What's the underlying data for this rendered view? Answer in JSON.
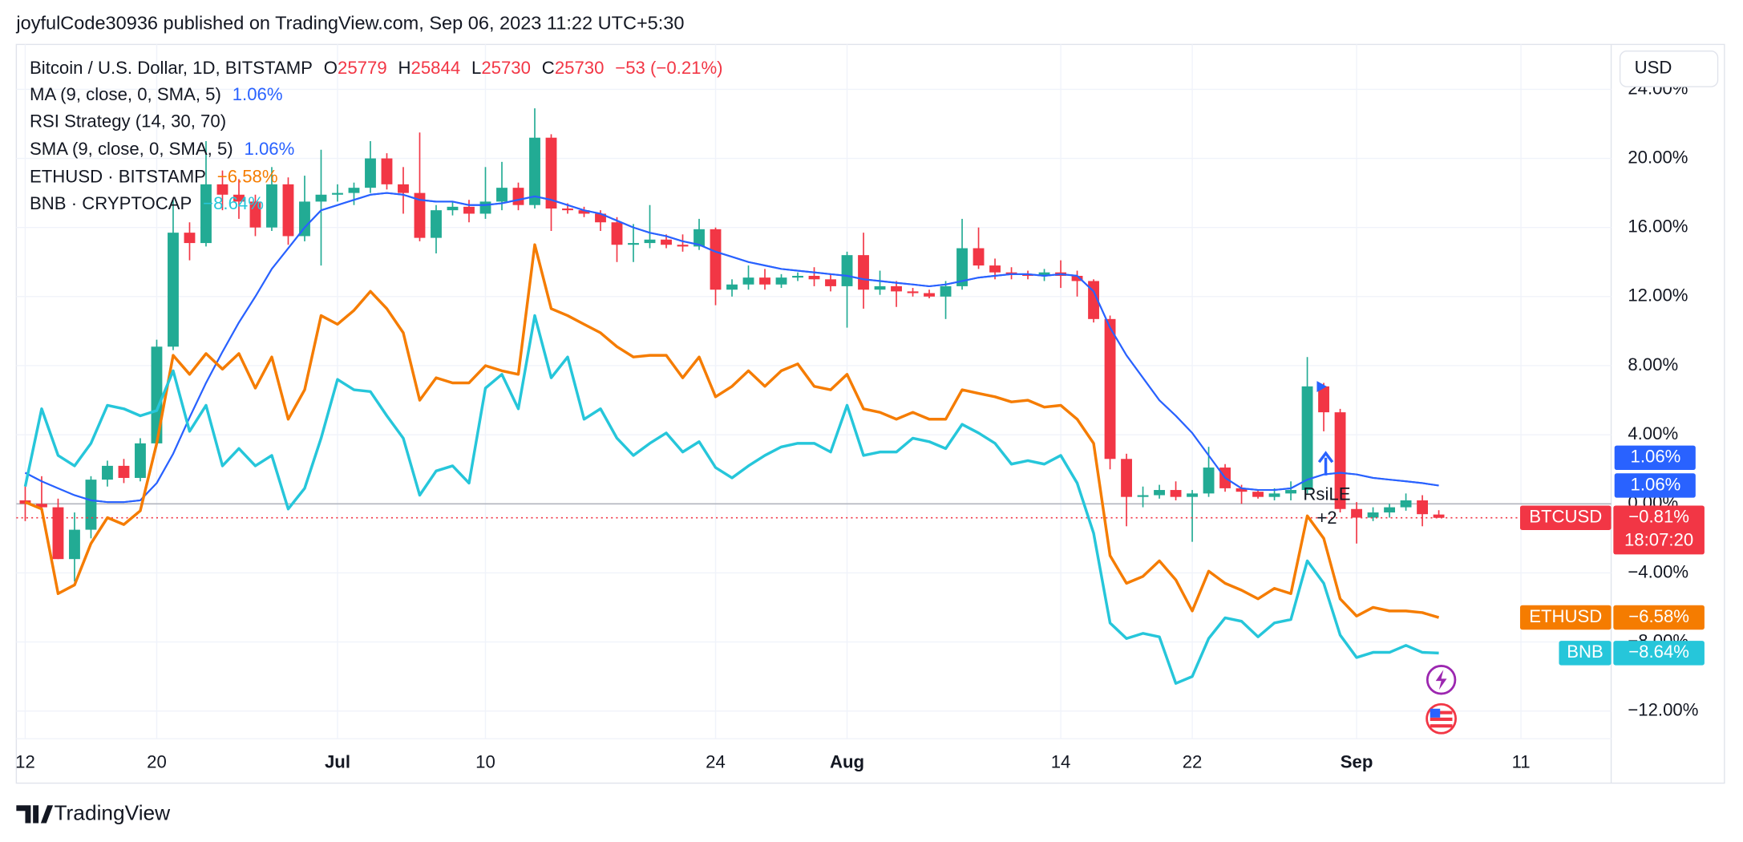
{
  "header": "joyfulCode30936 published on TradingView.com, Sep 06, 2023 11:22 UTC+5:30",
  "footer": "TradingView",
  "chart_data": {
    "type": "candlestick",
    "currency": "USD",
    "grid": true,
    "up_color": "#22ab94",
    "down_color": "#f23645",
    "ylim": [
      -13.6,
      26.6
    ],
    "yticks": [
      {
        "value": 24,
        "label": "24.00%"
      },
      {
        "value": 20,
        "label": "20.00%"
      },
      {
        "value": 16,
        "label": "16.00%"
      },
      {
        "value": 12,
        "label": "12.00%"
      },
      {
        "value": 8,
        "label": "8.00%"
      },
      {
        "value": 4,
        "label": "4.00%"
      },
      {
        "value": 0,
        "label": "0.00%"
      },
      {
        "value": -4,
        "label": "−4.00%"
      },
      {
        "value": -8,
        "label": "−8.00%"
      },
      {
        "value": -12,
        "label": "−12.00%"
      }
    ],
    "x": [
      "Jun 12",
      "Jun 13",
      "Jun 14",
      "Jun 15",
      "Jun 16",
      "Jun 17",
      "Jun 18",
      "Jun 19",
      "Jun 20",
      "Jun 21",
      "Jun 22",
      "Jun 23",
      "Jun 24",
      "Jun 25",
      "Jun 26",
      "Jun 27",
      "Jun 28",
      "Jun 29",
      "Jun 30",
      "Jul 1",
      "Jul 2",
      "Jul 3",
      "Jul 4",
      "Jul 5",
      "Jul 6",
      "Jul 7",
      "Jul 8",
      "Jul 9",
      "Jul 10",
      "Jul 11",
      "Jul 12",
      "Jul 13",
      "Jul 14",
      "Jul 15",
      "Jul 16",
      "Jul 17",
      "Jul 18",
      "Jul 19",
      "Jul 20",
      "Jul 21",
      "Jul 22",
      "Jul 23",
      "Jul 24",
      "Jul 25",
      "Jul 26",
      "Jul 27",
      "Jul 28",
      "Jul 29",
      "Jul 30",
      "Jul 31",
      "Aug 1",
      "Aug 2",
      "Aug 3",
      "Aug 4",
      "Aug 5",
      "Aug 6",
      "Aug 7",
      "Aug 8",
      "Aug 9",
      "Aug 10",
      "Aug 11",
      "Aug 12",
      "Aug 13",
      "Aug 14",
      "Aug 15",
      "Aug 16",
      "Aug 17",
      "Aug 18",
      "Aug 19",
      "Aug 20",
      "Aug 21",
      "Aug 22",
      "Aug 23",
      "Aug 24",
      "Aug 25",
      "Aug 26",
      "Aug 27",
      "Aug 28",
      "Aug 29",
      "Aug 30",
      "Aug 31",
      "Sep 1",
      "Sep 2",
      "Sep 3",
      "Sep 4",
      "Sep 5",
      "Sep 6",
      "Sep 7",
      "Sep 8",
      "Sep 9",
      "Sep 10",
      "Sep 11"
    ],
    "xticks": [
      {
        "value": "Jun 12",
        "label": "12"
      },
      {
        "value": "Jun 20",
        "label": "20"
      },
      {
        "value": "Jul 1",
        "label": "Jul"
      },
      {
        "value": "Jul 10",
        "label": "10"
      },
      {
        "value": "Jul 24",
        "label": "24"
      },
      {
        "value": "Aug 1",
        "label": "Aug"
      },
      {
        "value": "Aug 14",
        "label": "14"
      },
      {
        "value": "Aug 22",
        "label": "22"
      },
      {
        "value": "Sep 1",
        "label": "Sep"
      },
      {
        "value": "Sep 11",
        "label": "11"
      }
    ],
    "ohlc": {
      "symbol": "Bitcoin / U.S. Dollar, 1D, BITSTAMP",
      "short_name": "BTCUSD",
      "fields": [
        {
          "key": "O",
          "value": 25779
        },
        {
          "key": "H",
          "value": 25844
        },
        {
          "key": "L",
          "value": 25730
        },
        {
          "key": "C",
          "value": 25730
        }
      ],
      "change": -53,
      "change_pct": -0.21,
      "change_label": "−53 (−0.21%)",
      "last_label": "−0.81%",
      "countdown": "18:07:20",
      "open": [
        0.2,
        0.0,
        -0.2,
        -3.2,
        -1.5,
        1.4,
        2.2,
        1.5,
        3.5,
        9.1,
        15.7,
        15.1,
        18.5,
        17.9,
        17.5,
        16.0,
        18.5,
        15.5,
        17.5,
        17.9,
        18.0,
        18.3,
        20.0,
        18.5,
        18.0,
        15.4,
        17.0,
        17.2,
        16.8,
        17.5,
        18.3,
        17.3,
        21.2,
        17.1,
        17.0,
        16.8,
        16.3,
        15.0,
        15.1,
        15.3,
        15.0,
        14.9,
        15.9,
        12.4,
        12.7,
        13.1,
        12.7,
        13.1,
        13.2,
        13.0,
        12.6,
        14.4,
        12.4,
        12.6,
        12.3,
        12.2,
        12.0,
        12.6,
        14.8,
        13.8,
        13.4,
        13.3,
        13.2,
        13.4,
        13.2,
        12.9,
        10.7,
        2.6,
        0.4,
        0.5,
        0.8,
        0.4,
        0.6,
        2.1,
        0.9,
        0.7,
        0.4,
        0.6,
        0.8,
        6.8,
        5.3,
        -0.3,
        -0.8,
        -0.5,
        -0.2,
        0.2,
        -0.62,
        null,
        null,
        null,
        null,
        null
      ],
      "high": [
        1.0,
        1.6,
        0.3,
        -0.5,
        1.6,
        2.5,
        2.6,
        3.8,
        9.5,
        17.6,
        16.3,
        21.0,
        19.3,
        18.8,
        17.9,
        19.5,
        18.9,
        19.0,
        20.5,
        18.5,
        18.6,
        21.0,
        20.3,
        19.5,
        21.5,
        17.3,
        17.5,
        17.6,
        19.5,
        19.8,
        18.6,
        22.9,
        21.4,
        17.4,
        17.2,
        17.0,
        16.6,
        16.2,
        17.3,
        15.6,
        15.6,
        16.5,
        16.0,
        13.0,
        13.8,
        13.6,
        13.3,
        13.4,
        13.7,
        13.3,
        14.6,
        15.7,
        13.5,
        12.9,
        12.5,
        12.4,
        12.9,
        16.5,
        16.0,
        14.2,
        13.7,
        13.5,
        13.6,
        14.1,
        13.5,
        13.0,
        10.9,
        2.9,
        1.0,
        1.1,
        1.3,
        0.8,
        3.3,
        2.3,
        1.1,
        0.8,
        0.9,
        1.3,
        8.5,
        7.0,
        5.5,
        0.1,
        -0.2,
        0.0,
        0.6,
        0.5,
        -0.37,
        null,
        null,
        null,
        null,
        null
      ],
      "low": [
        -1.0,
        -0.5,
        -3.2,
        -4.5,
        -2.0,
        1.0,
        1.2,
        1.3,
        3.3,
        8.9,
        14.1,
        14.9,
        17.0,
        16.5,
        15.5,
        15.8,
        15.0,
        15.2,
        13.8,
        17.5,
        17.3,
        18.0,
        18.2,
        16.8,
        15.2,
        14.5,
        16.7,
        16.3,
        16.5,
        17.0,
        17.0,
        17.1,
        15.8,
        16.8,
        16.6,
        15.8,
        14.0,
        14.0,
        14.8,
        14.8,
        14.6,
        14.7,
        11.5,
        12.0,
        12.4,
        12.4,
        12.5,
        12.9,
        12.6,
        12.3,
        10.2,
        11.3,
        12.1,
        11.4,
        12.0,
        11.9,
        10.7,
        12.4,
        13.6,
        13.0,
        13.0,
        13.0,
        12.9,
        12.5,
        12.0,
        10.5,
        2.0,
        -1.3,
        -0.2,
        0.3,
        0.2,
        -2.2,
        0.4,
        0.7,
        0.0,
        0.3,
        0.2,
        0.2,
        0.6,
        4.2,
        -0.5,
        -2.3,
        -1.0,
        -0.8,
        -0.4,
        -1.3,
        -0.81,
        null,
        null,
        null,
        null,
        null
      ],
      "close": [
        0.0,
        -0.2,
        -3.2,
        -1.5,
        1.4,
        2.2,
        1.5,
        3.5,
        9.1,
        15.7,
        15.1,
        18.5,
        17.9,
        17.5,
        16.0,
        18.5,
        15.5,
        17.5,
        17.9,
        18.0,
        18.3,
        20.0,
        18.5,
        18.0,
        15.4,
        17.0,
        17.2,
        16.8,
        17.5,
        18.3,
        17.3,
        21.2,
        17.1,
        17.0,
        16.8,
        16.3,
        15.0,
        15.1,
        15.3,
        15.0,
        14.9,
        15.9,
        12.4,
        12.7,
        13.1,
        12.7,
        13.1,
        13.2,
        13.0,
        12.6,
        14.4,
        12.4,
        12.6,
        12.3,
        12.2,
        12.0,
        12.6,
        14.8,
        13.8,
        13.4,
        13.3,
        13.2,
        13.4,
        13.2,
        12.9,
        10.7,
        2.6,
        0.4,
        0.5,
        0.8,
        0.4,
        0.6,
        2.1,
        0.9,
        0.7,
        0.4,
        0.6,
        0.8,
        6.8,
        5.3,
        -0.3,
        -0.8,
        -0.5,
        -0.2,
        0.2,
        -0.6,
        -0.81,
        null,
        null,
        null,
        null,
        null
      ]
    },
    "indicators": [
      {
        "name": "RSI Strategy (14, 30, 70)"
      }
    ],
    "annotations": [
      {
        "text": "RsiLE"
      },
      {
        "text": "+2"
      }
    ],
    "series": [
      {
        "name": "MA (9, close, 0, SMA, 5)",
        "color": "#2962ff",
        "width": 1.5,
        "last_label": "1.06%",
        "values": [
          1.8,
          1.3,
          0.9,
          0.5,
          0.2,
          0.1,
          0.1,
          0.2,
          1.2,
          2.9,
          5.0,
          7.0,
          8.8,
          10.5,
          12.0,
          13.6,
          14.8,
          16.0,
          17.0,
          17.3,
          17.6,
          17.9,
          18.0,
          17.9,
          17.6,
          17.5,
          17.5,
          17.3,
          17.3,
          17.4,
          17.6,
          17.8,
          17.6,
          17.3,
          17.0,
          16.8,
          16.4,
          16.0,
          15.7,
          15.5,
          15.2,
          15.0,
          14.6,
          14.3,
          14.0,
          13.8,
          13.6,
          13.5,
          13.4,
          13.3,
          13.2,
          13.0,
          12.9,
          12.8,
          12.7,
          12.6,
          12.7,
          12.9,
          13.1,
          13.2,
          13.3,
          13.3,
          13.2,
          13.3,
          13.2,
          12.3,
          10.2,
          8.6,
          7.3,
          6.0,
          5.1,
          4.1,
          2.8,
          1.5,
          0.9,
          0.8,
          0.8,
          0.9,
          1.4,
          1.7,
          1.8,
          1.7,
          1.5,
          1.4,
          1.3,
          1.2,
          1.06,
          null,
          null,
          null,
          null,
          null
        ]
      },
      {
        "name": "SMA (9, close, 0, SMA, 5)",
        "color": "#2962ff",
        "width": 1.5,
        "last_label": "1.06%",
        "values": [
          1.8,
          1.3,
          0.9,
          0.5,
          0.2,
          0.1,
          0.1,
          0.2,
          1.2,
          2.9,
          5.0,
          7.0,
          8.8,
          10.5,
          12.0,
          13.6,
          14.8,
          16.0,
          17.0,
          17.3,
          17.6,
          17.9,
          18.0,
          17.9,
          17.6,
          17.5,
          17.5,
          17.3,
          17.3,
          17.4,
          17.6,
          17.8,
          17.6,
          17.3,
          17.0,
          16.8,
          16.4,
          16.0,
          15.7,
          15.5,
          15.2,
          15.0,
          14.6,
          14.3,
          14.0,
          13.8,
          13.6,
          13.5,
          13.4,
          13.3,
          13.2,
          13.0,
          12.9,
          12.8,
          12.7,
          12.6,
          12.7,
          12.9,
          13.1,
          13.2,
          13.3,
          13.3,
          13.2,
          13.3,
          13.2,
          12.3,
          10.2,
          8.6,
          7.3,
          6.0,
          5.1,
          4.1,
          2.8,
          1.5,
          0.9,
          0.8,
          0.8,
          0.9,
          1.4,
          1.7,
          1.8,
          1.7,
          1.5,
          1.4,
          1.3,
          1.2,
          1.06,
          null,
          null,
          null,
          null,
          null
        ]
      },
      {
        "name": "ETHUSD · BITSTAMP",
        "short_name": "ETHUSD",
        "color": "#f57c00",
        "width": 2.5,
        "last_label": "−6.58%",
        "values": [
          0.1,
          -0.3,
          -5.2,
          -4.7,
          -2.3,
          -0.8,
          -1.2,
          -0.4,
          3.5,
          8.6,
          7.5,
          8.7,
          7.8,
          8.7,
          6.7,
          8.5,
          4.9,
          6.6,
          10.9,
          10.4,
          11.2,
          12.3,
          11.3,
          9.9,
          6.0,
          7.3,
          7.0,
          7.0,
          8.0,
          7.7,
          7.5,
          15.0,
          11.3,
          10.9,
          10.4,
          9.9,
          9.1,
          8.5,
          8.6,
          8.6,
          7.3,
          8.5,
          6.2,
          6.8,
          7.7,
          6.8,
          7.7,
          8.1,
          6.8,
          6.6,
          7.5,
          5.5,
          5.3,
          4.9,
          5.3,
          4.9,
          4.9,
          6.6,
          6.4,
          6.2,
          5.9,
          6.0,
          5.6,
          5.7,
          4.9,
          3.5,
          -3.0,
          -4.6,
          -4.2,
          -3.3,
          -4.4,
          -6.2,
          -3.9,
          -4.6,
          -5.0,
          -5.5,
          -4.9,
          -5.2,
          -0.7,
          -2.0,
          -5.5,
          -6.5,
          -6.0,
          -6.2,
          -6.2,
          -6.3,
          -6.58,
          null,
          null,
          null,
          null,
          null
        ]
      },
      {
        "name": "BNB · CRYPTOCAP",
        "short_name": "BNB",
        "color": "#26c6da",
        "width": 2.5,
        "last_label": "−8.64%",
        "values": [
          1.0,
          5.5,
          2.8,
          2.2,
          3.5,
          5.7,
          5.5,
          5.1,
          5.4,
          7.7,
          4.2,
          5.7,
          2.2,
          3.2,
          2.2,
          2.8,
          -0.3,
          0.9,
          3.8,
          7.2,
          6.6,
          6.5,
          5.1,
          3.8,
          0.5,
          1.9,
          2.2,
          1.2,
          6.7,
          7.5,
          5.5,
          10.9,
          7.3,
          8.5,
          4.9,
          5.5,
          3.8,
          2.8,
          3.5,
          4.1,
          3.0,
          3.6,
          2.1,
          1.5,
          2.2,
          2.8,
          3.3,
          3.5,
          3.5,
          3.0,
          5.7,
          2.8,
          3.0,
          3.0,
          3.8,
          3.6,
          3.2,
          4.6,
          4.1,
          3.5,
          2.3,
          2.5,
          2.3,
          2.8,
          1.2,
          -1.7,
          -6.9,
          -7.8,
          -7.5,
          -7.7,
          -10.4,
          -10.0,
          -7.8,
          -6.6,
          -6.8,
          -7.7,
          -6.9,
          -6.7,
          -3.3,
          -4.6,
          -7.6,
          -8.9,
          -8.6,
          -8.6,
          -8.2,
          -8.6,
          -8.64,
          null,
          null,
          null,
          null,
          null
        ]
      }
    ]
  }
}
